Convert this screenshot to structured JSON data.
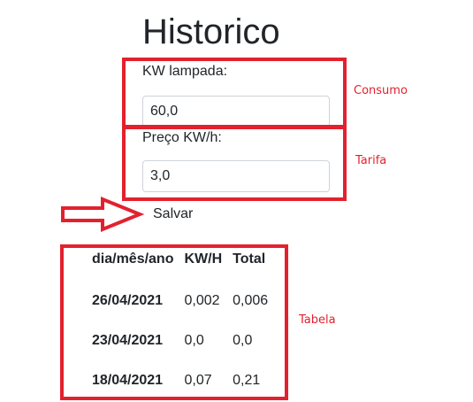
{
  "page": {
    "title": "Historico"
  },
  "form": {
    "consumo": {
      "label": "KW lampada:",
      "value": "60,0"
    },
    "tarifa": {
      "label": "Preço KW/h:",
      "value": "3,0"
    },
    "save_label": "Salvar"
  },
  "annotations": {
    "consumo": "Consumo",
    "tarifa": "Tarifa",
    "tabela": "Tabela",
    "color": "#e3212e"
  },
  "table": {
    "headers": [
      "dia/mês/ano",
      "KW/H",
      "Total"
    ],
    "rows": [
      {
        "date": "26/04/2021",
        "kwh": "0,002",
        "total": "0,006"
      },
      {
        "date": "23/04/2021",
        "kwh": "0,0",
        "total": "0,0"
      },
      {
        "date": "18/04/2021",
        "kwh": "0,07",
        "total": "0,21"
      }
    ]
  }
}
